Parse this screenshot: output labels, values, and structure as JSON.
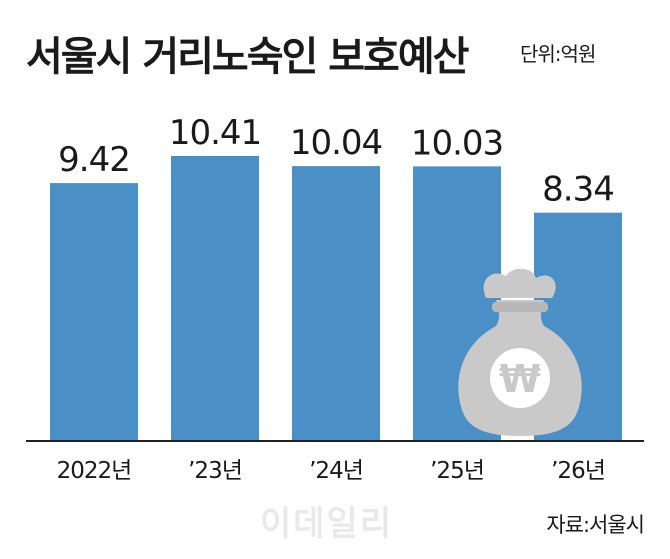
{
  "title": "서울시 거리노숙인 보호예산",
  "unit": "단위:억원",
  "source": "자료:서울시",
  "watermark": "이데일리",
  "colors": {
    "bar": "#4b8fc7",
    "money_bag": "#c9c9c9",
    "axis": "#222222"
  },
  "icon": "won-money-bag-icon",
  "chart_data": {
    "type": "bar",
    "title": "서울시 거리노숙인 보호예산",
    "unit": "단위:억원",
    "categories": [
      "2022년",
      "’23년",
      "’24년",
      "’25년",
      "’26년"
    ],
    "values": [
      9.42,
      10.41,
      10.04,
      10.03,
      8.34
    ],
    "value_labels": [
      "9.42",
      "10.41",
      "10.04",
      "10.03",
      "8.34"
    ],
    "ylim": [
      0,
      10.41
    ],
    "grid": false,
    "legend": "none"
  }
}
